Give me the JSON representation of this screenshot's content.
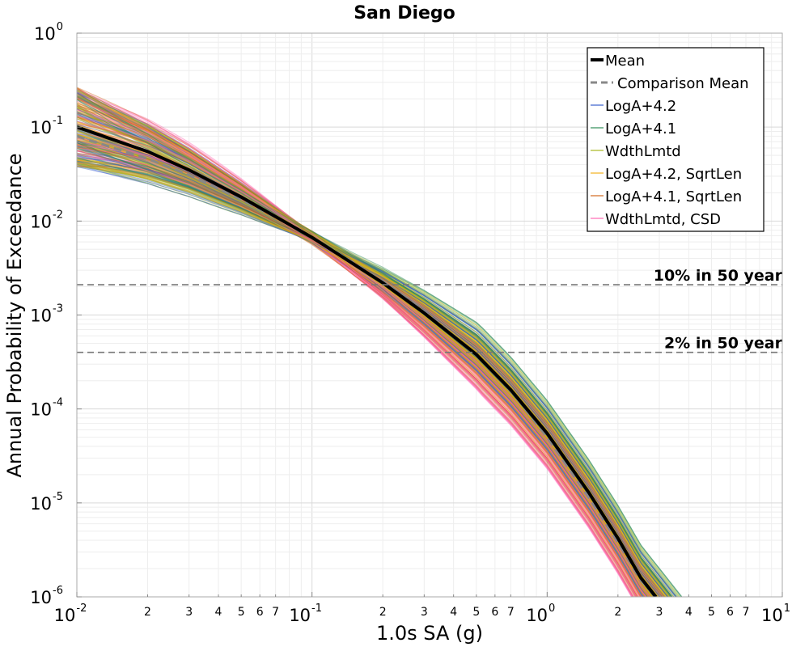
{
  "chart_data": {
    "type": "line",
    "title": "San Diego",
    "xlabel": "1.0s SA (g)",
    "ylabel": "Annual Probability of Exceedance",
    "x_scale": "log",
    "y_scale": "log",
    "xlim": [
      0.01,
      10
    ],
    "ylim": [
      1e-06,
      1
    ],
    "grid": true,
    "legend_position": "top-right",
    "x_ticks": [
      {
        "label": "10",
        "exp": "-2",
        "major": true,
        "value": 0.01
      },
      {
        "label": "2",
        "value": 0.02
      },
      {
        "label": "3",
        "value": 0.03
      },
      {
        "label": "4",
        "value": 0.04
      },
      {
        "label": "5",
        "value": 0.05
      },
      {
        "label": "6",
        "value": 0.06
      },
      {
        "label": "7",
        "value": 0.07
      },
      {
        "label": "10",
        "exp": "-1",
        "major": true,
        "value": 0.1
      },
      {
        "label": "2",
        "value": 0.2
      },
      {
        "label": "3",
        "value": 0.3
      },
      {
        "label": "4",
        "value": 0.4
      },
      {
        "label": "5",
        "value": 0.5
      },
      {
        "label": "6",
        "value": 0.6
      },
      {
        "label": "7",
        "value": 0.7
      },
      {
        "label": "10",
        "exp": "0",
        "major": true,
        "value": 1
      },
      {
        "label": "2",
        "value": 2
      },
      {
        "label": "3",
        "value": 3
      },
      {
        "label": "4",
        "value": 4
      },
      {
        "label": "5",
        "value": 5
      },
      {
        "label": "6",
        "value": 6
      },
      {
        "label": "7",
        "value": 7
      },
      {
        "label": "10",
        "exp": "1",
        "major": true,
        "value": 10
      }
    ],
    "y_ticks": [
      {
        "label": "10",
        "exp": "0",
        "value": 1
      },
      {
        "label": "10",
        "exp": "-1",
        "value": 0.1
      },
      {
        "label": "10",
        "exp": "-2",
        "value": 0.01
      },
      {
        "label": "10",
        "exp": "-3",
        "value": 0.001
      },
      {
        "label": "10",
        "exp": "-4",
        "value": 0.0001
      },
      {
        "label": "10",
        "exp": "-5",
        "value": 1e-05
      },
      {
        "label": "10",
        "exp": "-6",
        "value": 1e-06
      }
    ],
    "reference_lines": [
      {
        "label": "10% in 50 year",
        "y": 0.0021,
        "color": "#777777"
      },
      {
        "label": "2% in 50 year",
        "y": 0.0004,
        "color": "#777777"
      }
    ],
    "series": [
      {
        "name": "Mean",
        "color": "#000000",
        "style": "solid",
        "width": 4,
        "x": [
          0.01,
          0.02,
          0.03,
          0.05,
          0.1,
          0.2,
          0.3,
          0.5,
          0.7,
          1.0,
          1.5,
          2.0,
          2.5,
          2.9
        ],
        "y": [
          0.1,
          0.055,
          0.035,
          0.018,
          0.0067,
          0.0022,
          0.00105,
          0.00038,
          0.00016,
          5.5e-05,
          1.3e-05,
          4.2e-06,
          1.6e-06,
          1e-06
        ]
      },
      {
        "name": "Comparison Mean",
        "color": "#888888",
        "style": "dashed",
        "width": 3,
        "x": [
          0.01,
          0.02,
          0.03,
          0.05,
          0.1,
          0.2,
          0.3,
          0.5,
          0.7,
          1.0,
          1.5,
          2.0,
          2.5,
          2.9
        ],
        "y": [
          0.08,
          0.046,
          0.031,
          0.017,
          0.0068,
          0.0023,
          0.0011,
          0.00038,
          0.000155,
          5e-05,
          1.15e-05,
          3.8e-06,
          1.5e-06,
          1e-06
        ]
      },
      {
        "name": "LogA+4.2",
        "color": "#3a5fcd",
        "style": "solid",
        "width": 1.2,
        "branch": true
      },
      {
        "name": "LogA+4.1",
        "color": "#2e8b57",
        "style": "solid",
        "width": 1.2,
        "branch": true
      },
      {
        "name": "WdthLmtd",
        "color": "#a8b820",
        "style": "solid",
        "width": 1.2,
        "branch": true
      },
      {
        "name": "LogA+4.2, SqrtLen",
        "color": "#f2b01e",
        "style": "solid",
        "width": 1.2,
        "branch": true
      },
      {
        "name": "LogA+4.1, SqrtLen",
        "color": "#d2691e",
        "style": "solid",
        "width": 1.2,
        "branch": true
      },
      {
        "name": "WdthLmtd, CSD",
        "color": "#ff69b4",
        "style": "solid",
        "width": 1.2,
        "branch": true
      }
    ],
    "legend": [
      {
        "label": "Mean",
        "color": "#000000",
        "style": "solid",
        "width": 4
      },
      {
        "label": "Comparison Mean",
        "color": "#888888",
        "style": "dashed",
        "width": 3
      },
      {
        "label": "LogA+4.2",
        "color": "#3a5fcd",
        "style": "solid",
        "width": 1.2
      },
      {
        "label": "LogA+4.1",
        "color": "#2e8b57",
        "style": "solid",
        "width": 1.2
      },
      {
        "label": "WdthLmtd",
        "color": "#a8b820",
        "style": "solid",
        "width": 1.2
      },
      {
        "label": "LogA+4.2, SqrtLen",
        "color": "#f2b01e",
        "style": "solid",
        "width": 1.2
      },
      {
        "label": "LogA+4.1, SqrtLen",
        "color": "#d2691e",
        "style": "solid",
        "width": 1.2
      },
      {
        "label": "WdthLmtd, CSD",
        "color": "#ff69b4",
        "style": "solid",
        "width": 1.2
      }
    ]
  }
}
